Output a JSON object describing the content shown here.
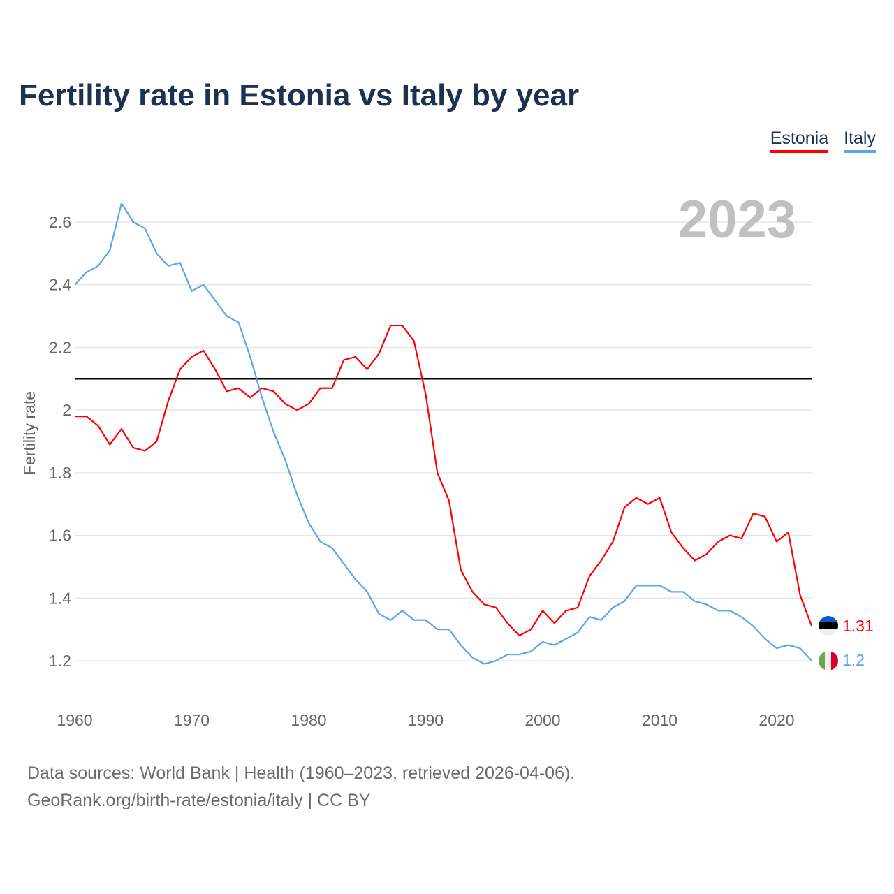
{
  "title": "Fertility rate in Estonia vs Italy by year",
  "legend": {
    "estonia": "Estonia",
    "italy": "Italy"
  },
  "year_label": "2023",
  "source_line1": "Data sources: World Bank | Health (1960–2023, retrieved 2026-04-06).",
  "source_line2": "GeoRank.org/birth-rate/estonia/italy | CC BY",
  "chart_data": {
    "type": "line",
    "title": "Fertility rate in Estonia vs Italy by year",
    "xlabel": "",
    "ylabel": "Fertility rate",
    "xlim": [
      1960,
      2023
    ],
    "ylim": [
      1.1,
      2.7
    ],
    "x_ticks": [
      1960,
      1970,
      1980,
      1990,
      2000,
      2010,
      2020
    ],
    "y_ticks": [
      "1.2",
      "1.4",
      "1.6",
      "1.8",
      "2",
      "2.2",
      "2.4",
      "2.6"
    ],
    "grid": true,
    "legend_position": "top-right",
    "reference_line": 2.1,
    "x": [
      1960,
      1961,
      1962,
      1963,
      1964,
      1965,
      1966,
      1967,
      1968,
      1969,
      1970,
      1971,
      1972,
      1973,
      1974,
      1975,
      1976,
      1977,
      1978,
      1979,
      1980,
      1981,
      1982,
      1983,
      1984,
      1985,
      1986,
      1987,
      1988,
      1989,
      1990,
      1991,
      1992,
      1993,
      1994,
      1995,
      1996,
      1997,
      1998,
      1999,
      2000,
      2001,
      2002,
      2003,
      2004,
      2005,
      2006,
      2007,
      2008,
      2009,
      2010,
      2011,
      2012,
      2013,
      2014,
      2015,
      2016,
      2017,
      2018,
      2019,
      2020,
      2021,
      2022,
      2023
    ],
    "series": [
      {
        "name": "Estonia",
        "color": "#ff0000",
        "end_label": "1.31",
        "values": [
          1.98,
          1.98,
          1.95,
          1.89,
          1.94,
          1.88,
          1.87,
          1.9,
          2.03,
          2.13,
          2.17,
          2.19,
          2.13,
          2.06,
          2.07,
          2.04,
          2.07,
          2.06,
          2.02,
          2.0,
          2.02,
          2.07,
          2.07,
          2.16,
          2.17,
          2.13,
          2.18,
          2.27,
          2.27,
          2.22,
          2.05,
          1.8,
          1.71,
          1.49,
          1.42,
          1.38,
          1.37,
          1.32,
          1.28,
          1.3,
          1.36,
          1.32,
          1.36,
          1.37,
          1.47,
          1.52,
          1.58,
          1.69,
          1.72,
          1.7,
          1.72,
          1.61,
          1.56,
          1.52,
          1.54,
          1.58,
          1.6,
          1.59,
          1.67,
          1.66,
          1.58,
          1.61,
          1.41,
          1.31
        ]
      },
      {
        "name": "Italy",
        "color": "#5aa5ec",
        "end_label": "1.2",
        "values": [
          2.4,
          2.44,
          2.46,
          2.51,
          2.66,
          2.6,
          2.58,
          2.5,
          2.46,
          2.47,
          2.38,
          2.4,
          2.35,
          2.3,
          2.28,
          2.17,
          2.04,
          1.93,
          1.84,
          1.73,
          1.64,
          1.58,
          1.56,
          1.51,
          1.46,
          1.42,
          1.35,
          1.33,
          1.36,
          1.33,
          1.33,
          1.3,
          1.3,
          1.25,
          1.21,
          1.19,
          1.2,
          1.22,
          1.22,
          1.23,
          1.26,
          1.25,
          1.27,
          1.29,
          1.34,
          1.33,
          1.37,
          1.39,
          1.44,
          1.44,
          1.44,
          1.42,
          1.42,
          1.39,
          1.38,
          1.36,
          1.36,
          1.34,
          1.31,
          1.27,
          1.24,
          1.25,
          1.24,
          1.2
        ]
      }
    ]
  }
}
